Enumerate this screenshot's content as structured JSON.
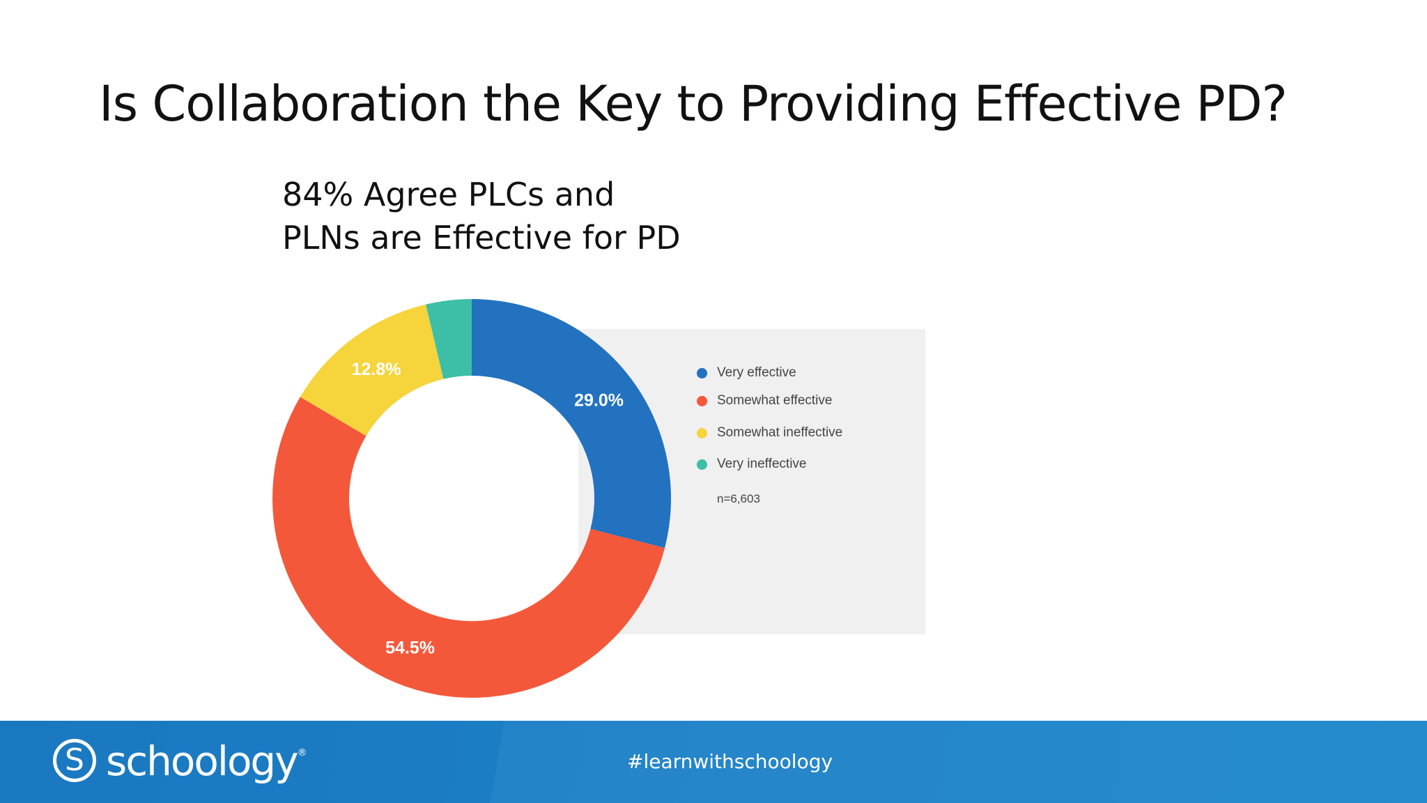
{
  "slide": {
    "title": "Is Collaboration the Key to Providing Effective PD?",
    "subtitle_line1": "84% Agree PLCs and",
    "subtitle_line2": "PLNs are Effective for PD"
  },
  "chart_data": {
    "type": "pie",
    "variant": "donut",
    "series": [
      {
        "name": "Very effective",
        "value": 29.0,
        "label": "29.0%",
        "color": "#2272c0"
      },
      {
        "name": "Somewhat effective",
        "value": 54.5,
        "label": "54.5%",
        "color": "#f4583a"
      },
      {
        "name": "Somewhat ineffective",
        "value": 12.8,
        "label": "12.8%",
        "color": "#f5d43c"
      },
      {
        "name": "Very ineffective",
        "value": 3.7,
        "label": "",
        "color": "#3cbfa6"
      }
    ],
    "legend_placement": "right",
    "note": "n=6,603"
  },
  "footer": {
    "logo_text": "schoology",
    "logo_mark": "S",
    "trademark": "®",
    "hashtag": "#learnwithschoology"
  }
}
